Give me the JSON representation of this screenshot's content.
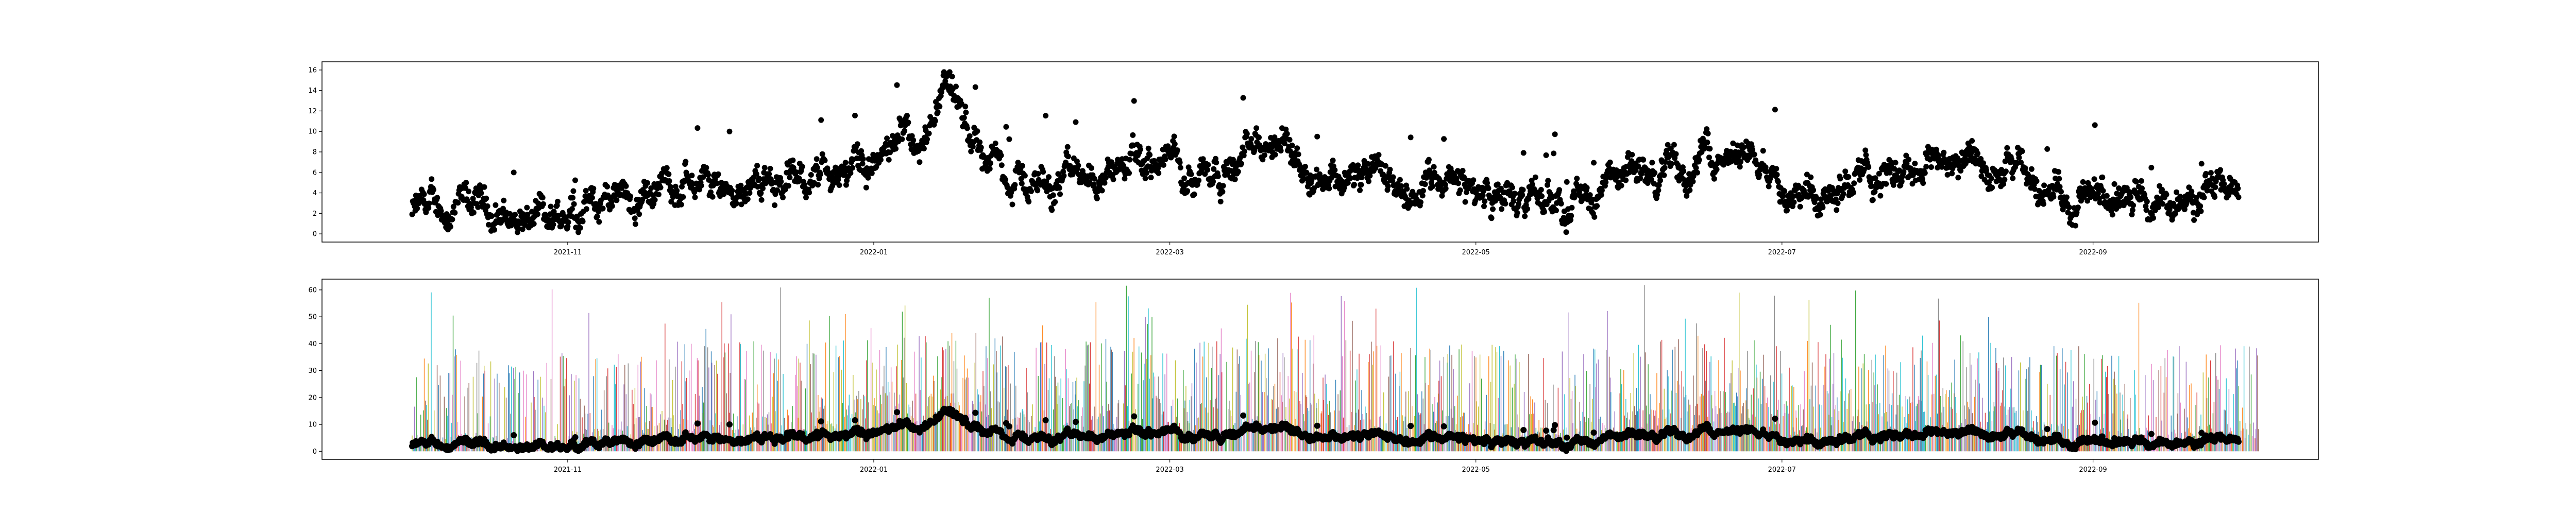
{
  "chart_data": [
    {
      "type": "scatter",
      "title": "",
      "xlabel": "",
      "ylabel": "",
      "x_range": [
        "2021-10-01",
        "2022-09-30"
      ],
      "ylim": [
        -0.8,
        16.8
      ],
      "xticks": [
        "2021-11",
        "2022-01",
        "2022-03",
        "2022-05",
        "2022-07",
        "2022-09"
      ],
      "yticks": [
        0,
        2,
        4,
        6,
        8,
        10,
        12,
        14,
        16
      ],
      "grid": false,
      "legend": "none",
      "marker_color": "#000000",
      "trend_knots": [
        {
          "x": "2021-10-01",
          "y": 2.0
        },
        {
          "x": "2021-10-15",
          "y": 2.4
        },
        {
          "x": "2021-10-25",
          "y": 1.2
        },
        {
          "x": "2021-11-05",
          "y": 3.0
        },
        {
          "x": "2021-11-20",
          "y": 5.0
        },
        {
          "x": "2021-12-10",
          "y": 5.0
        },
        {
          "x": "2021-12-25",
          "y": 6.0
        },
        {
          "x": "2022-01-05",
          "y": 7.5
        },
        {
          "x": "2022-01-12",
          "y": 8.0
        },
        {
          "x": "2022-01-15",
          "y": 13.5
        },
        {
          "x": "2022-01-20",
          "y": 9.0
        },
        {
          "x": "2022-02-01",
          "y": 5.0
        },
        {
          "x": "2022-02-20",
          "y": 6.5
        },
        {
          "x": "2022-03-10",
          "y": 7.0
        },
        {
          "x": "2022-03-22",
          "y": 8.5
        },
        {
          "x": "2022-04-10",
          "y": 5.0
        },
        {
          "x": "2022-04-25",
          "y": 5.0
        },
        {
          "x": "2022-05-10",
          "y": 3.0
        },
        {
          "x": "2022-05-25",
          "y": 4.0
        },
        {
          "x": "2022-06-05",
          "y": 6.0
        },
        {
          "x": "2022-06-20",
          "y": 8.0
        },
        {
          "x": "2022-07-05",
          "y": 5.0
        },
        {
          "x": "2022-07-20",
          "y": 6.0
        },
        {
          "x": "2022-08-01",
          "y": 8.0
        },
        {
          "x": "2022-08-15",
          "y": 6.0
        },
        {
          "x": "2022-08-28",
          "y": 3.5
        },
        {
          "x": "2022-09-10",
          "y": 3.0
        },
        {
          "x": "2022-09-30",
          "y": 4.0
        }
      ]
    },
    {
      "type": "line",
      "title": "",
      "xlabel": "",
      "ylabel": "",
      "x_range": [
        "2021-10-01",
        "2022-09-30"
      ],
      "ylim": [
        -3,
        64
      ],
      "xticks": [
        "2021-11",
        "2022-01",
        "2022-03",
        "2022-05",
        "2022-07",
        "2022-09"
      ],
      "yticks": [
        0,
        10,
        20,
        30,
        40,
        50,
        60
      ],
      "grid": false,
      "legend": "none",
      "series_colors": [
        "#1f77b4",
        "#ff7f0e",
        "#2ca02c",
        "#d62728",
        "#9467bd",
        "#8c564b",
        "#e377c2",
        "#7f7f7f",
        "#bcbd22",
        "#17becf"
      ],
      "line_peak_range": [
        0,
        62
      ],
      "overlay_marker_color": "#000000",
      "overlay": "same scatter series as top panel"
    }
  ]
}
